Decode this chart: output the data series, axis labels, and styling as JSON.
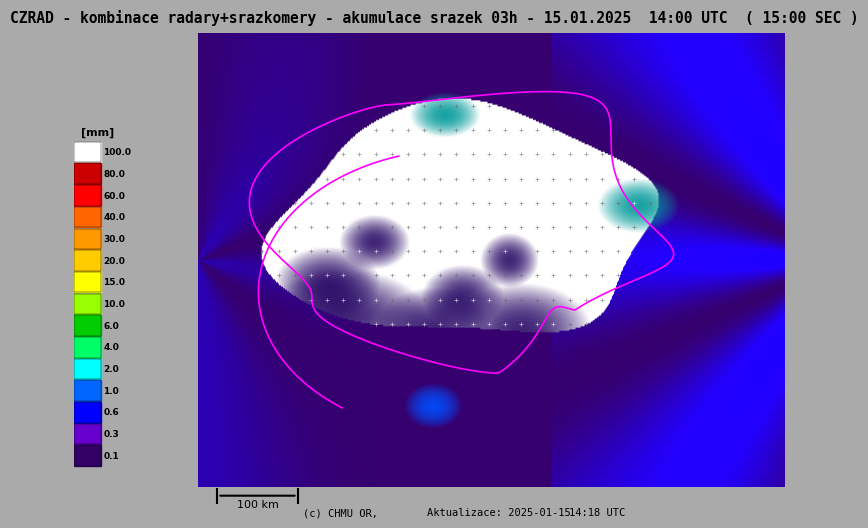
{
  "title": "CZRAD - kombinace radary+srazkomery - akumulace srazek 03h - 15.01.2025  14:00 UTC  ( 15:00 SEC )",
  "title_color": "#000000",
  "title_fontsize": 10.5,
  "bg_color": "#aaaaaa",
  "map_bg": "#36006e",
  "fig_width": 7.28,
  "fig_height": 5.28,
  "footer_left": "(c) CHMU OR,",
  "footer_mid": "Aktualizace: 2025-01-15",
  "footer_right": "14:18 UTC",
  "scale_label": "100 km",
  "legend_label": "[mm]",
  "legend_values": [
    "100.0",
    "80.0",
    "60.0",
    "40.0",
    "30.0",
    "20.0",
    "15.0",
    "10.0",
    "6.0",
    "4.0",
    "2.0",
    "1.0",
    "0.6",
    "0.3",
    "0.1"
  ],
  "legend_colors": [
    "#ffffff",
    "#cc0000",
    "#ff0000",
    "#ff6600",
    "#ff9900",
    "#ffcc00",
    "#ffff00",
    "#99ff00",
    "#00cc00",
    "#00ff66",
    "#00ffff",
    "#0066ff",
    "#0000ff",
    "#6600cc",
    "#330066"
  ]
}
